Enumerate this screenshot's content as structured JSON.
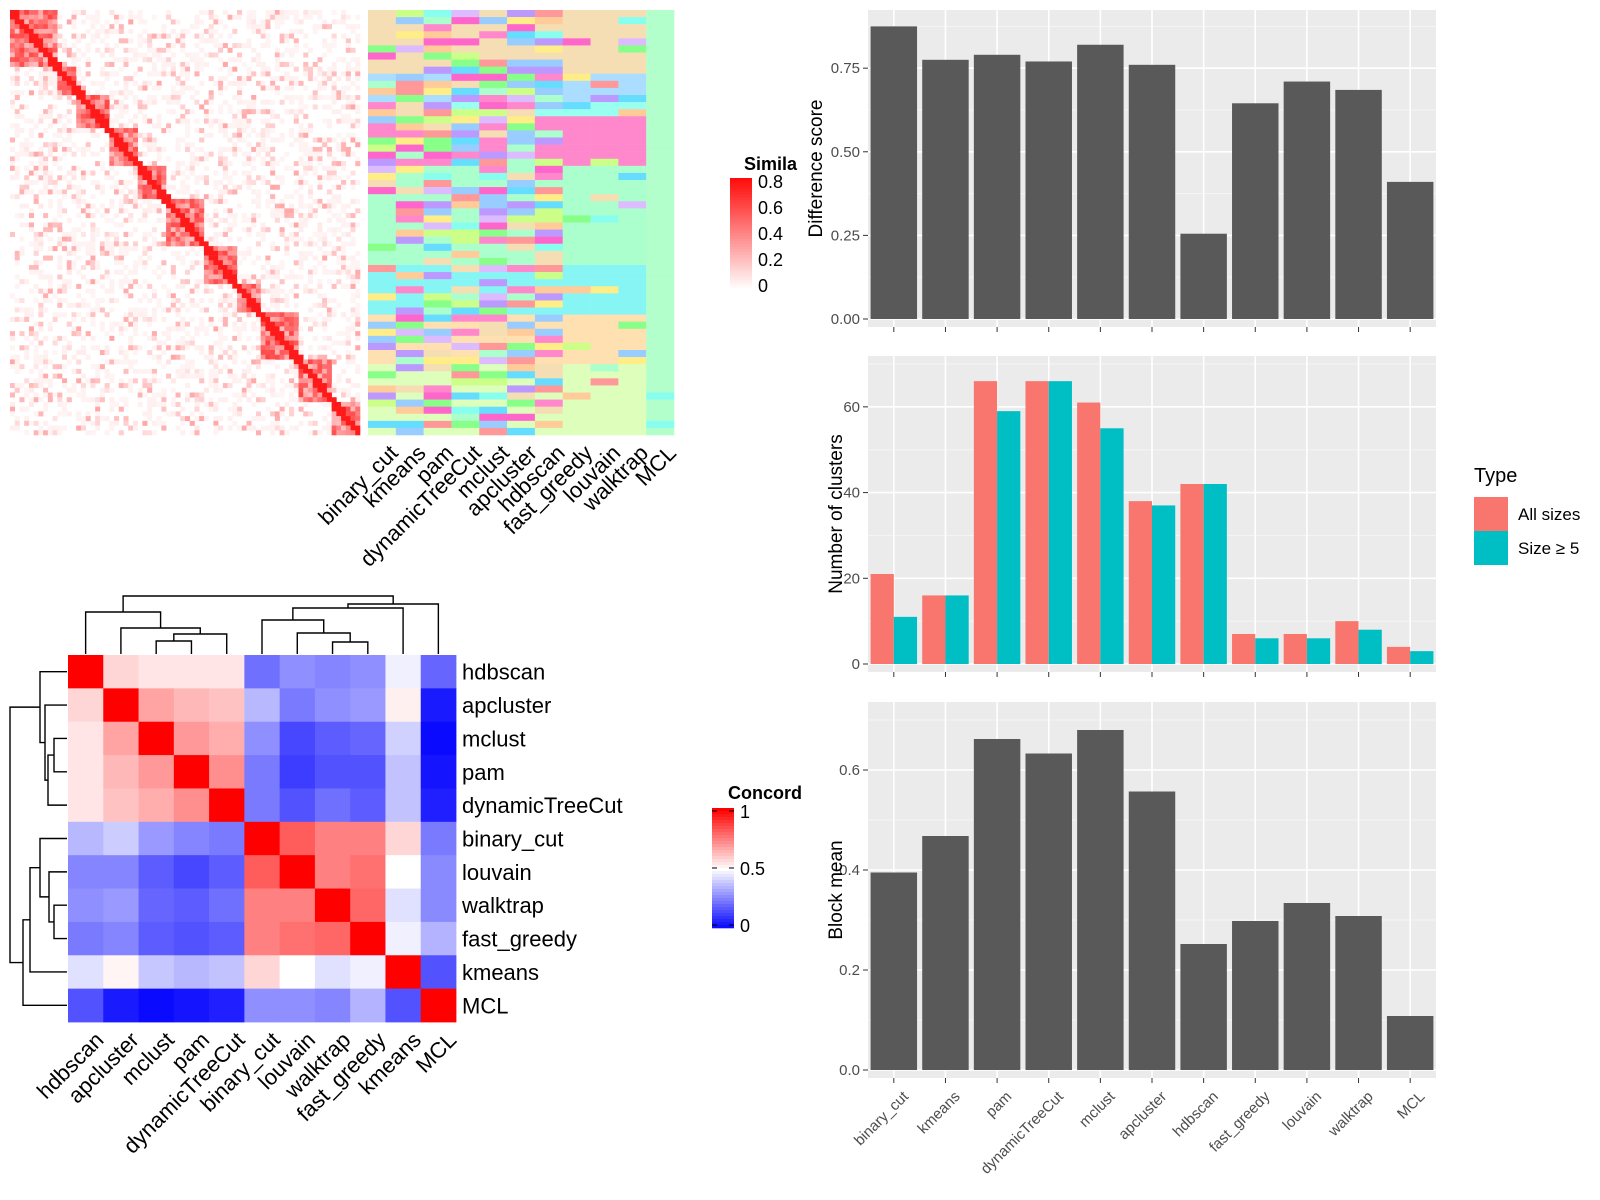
{
  "methods": [
    "binary_cut",
    "kmeans",
    "pam",
    "dynamicTreeCut",
    "mclust",
    "apcluster",
    "hdbscan",
    "fast_greedy",
    "louvain",
    "walktrap",
    "MCL"
  ],
  "colors": {
    "bar": "#595959",
    "panel_bg": "#ebebeb",
    "grid": "#ffffff",
    "all_sizes": "#f8766d",
    "size_ge5": "#00bfc4",
    "heat_high": "#ff0000",
    "heat_mid": "#ffffff",
    "heat_low": "#0000ff"
  },
  "similarity_heatmap": {
    "legend_title": "Simila",
    "legend_ticks": [
      "0.8",
      "0.6",
      "0.4",
      "0.2",
      "0"
    ],
    "row_blocks": [
      60,
      26,
      38,
      38,
      36,
      46,
      42,
      28,
      46,
      45,
      35
    ]
  },
  "concordance_heatmap": {
    "legend_title": "Concord",
    "legend_ticks": [
      "1",
      "0.5",
      "0"
    ],
    "row_labels": [
      "hdbscan",
      "apcluster",
      "mclust",
      "pam",
      "dynamicTreeCut",
      "binary_cut",
      "louvain",
      "walktrap",
      "fast_greedy",
      "kmeans",
      "MCL"
    ],
    "matrix": [
      [
        1.0,
        0.58,
        0.55,
        0.55,
        0.55,
        0.22,
        0.28,
        0.26,
        0.28,
        0.47,
        0.2
      ],
      [
        0.58,
        1.0,
        0.68,
        0.64,
        0.62,
        0.36,
        0.24,
        0.28,
        0.3,
        0.53,
        0.05
      ],
      [
        0.55,
        0.68,
        1.0,
        0.7,
        0.66,
        0.28,
        0.14,
        0.18,
        0.2,
        0.41,
        0.02
      ],
      [
        0.55,
        0.64,
        0.7,
        1.0,
        0.72,
        0.24,
        0.12,
        0.16,
        0.16,
        0.38,
        0.04
      ],
      [
        0.55,
        0.62,
        0.66,
        0.72,
        1.0,
        0.24,
        0.16,
        0.22,
        0.18,
        0.38,
        0.06
      ],
      [
        0.36,
        0.4,
        0.3,
        0.26,
        0.24,
        1.0,
        0.82,
        0.75,
        0.75,
        0.58,
        0.24
      ],
      [
        0.26,
        0.26,
        0.18,
        0.14,
        0.18,
        0.82,
        1.0,
        0.75,
        0.78,
        0.5,
        0.27
      ],
      [
        0.28,
        0.3,
        0.2,
        0.18,
        0.22,
        0.75,
        0.75,
        1.0,
        0.8,
        0.44,
        0.27
      ],
      [
        0.24,
        0.26,
        0.18,
        0.16,
        0.18,
        0.75,
        0.78,
        0.8,
        1.0,
        0.47,
        0.35
      ],
      [
        0.44,
        0.52,
        0.39,
        0.36,
        0.38,
        0.58,
        0.5,
        0.44,
        0.47,
        1.0,
        0.16
      ],
      [
        0.16,
        0.05,
        0.02,
        0.04,
        0.06,
        0.28,
        0.28,
        0.26,
        0.35,
        0.16,
        1.0
      ]
    ]
  },
  "chart_data": [
    {
      "type": "bar",
      "categories": [
        "binary_cut",
        "kmeans",
        "pam",
        "dynamicTreeCut",
        "mclust",
        "apcluster",
        "hdbscan",
        "fast_greedy",
        "louvain",
        "walktrap",
        "MCL"
      ],
      "values": [
        0.875,
        0.775,
        0.79,
        0.77,
        0.82,
        0.76,
        0.255,
        0.645,
        0.71,
        0.685,
        0.41
      ],
      "ylabel": "Difference score",
      "ylim": [
        0,
        0.9
      ],
      "yticks": [
        "0.00",
        "0.25",
        "0.50",
        "0.75"
      ],
      "ytick_values": [
        0,
        0.25,
        0.5,
        0.75
      ],
      "grid": true
    },
    {
      "type": "bar",
      "categories": [
        "binary_cut",
        "kmeans",
        "pam",
        "dynamicTreeCut",
        "mclust",
        "apcluster",
        "hdbscan",
        "fast_greedy",
        "louvain",
        "walktrap",
        "MCL"
      ],
      "series": [
        {
          "name": "All sizes",
          "values": [
            21,
            16,
            66,
            66,
            61,
            38,
            42,
            7,
            7,
            10,
            4
          ]
        },
        {
          "name": "Size ≥ 5",
          "values": [
            11,
            16,
            59,
            66,
            55,
            37,
            42,
            6,
            6,
            8,
            3
          ]
        }
      ],
      "ylabel": "Number of clusters",
      "ylim": [
        0,
        70
      ],
      "yticks": [
        "0",
        "20",
        "40",
        "60"
      ],
      "ytick_values": [
        0,
        20,
        40,
        60
      ],
      "legend_title": "Type",
      "legend_position": "right",
      "grid": true
    },
    {
      "type": "bar",
      "categories": [
        "binary_cut",
        "kmeans",
        "pam",
        "dynamicTreeCut",
        "mclust",
        "apcluster",
        "hdbscan",
        "fast_greedy",
        "louvain",
        "walktrap",
        "MCL"
      ],
      "values": [
        0.395,
        0.468,
        0.662,
        0.633,
        0.68,
        0.557,
        0.252,
        0.298,
        0.334,
        0.308,
        0.108
      ],
      "ylabel": "Block mean",
      "ylim": [
        0,
        0.72
      ],
      "yticks": [
        "0.0",
        "0.2",
        "0.4",
        "0.6"
      ],
      "ytick_values": [
        0,
        0.2,
        0.4,
        0.6
      ],
      "grid": true
    }
  ]
}
